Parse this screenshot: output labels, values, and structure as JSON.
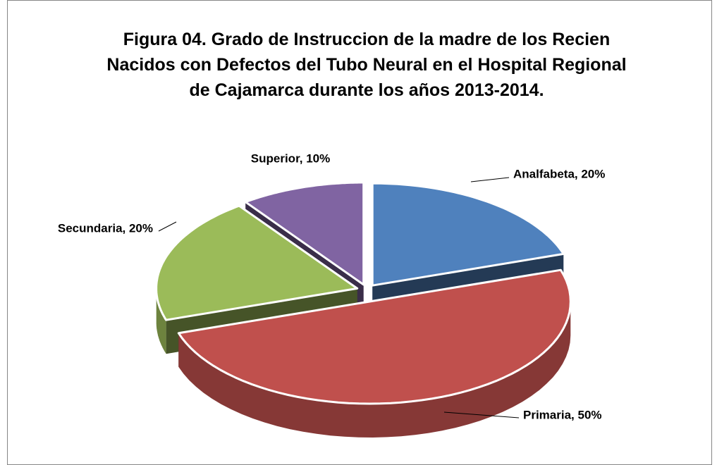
{
  "chart_data": {
    "type": "pie3d",
    "title": "Figura 04. Grado de Instruccion de la madre de los Recien Nacidos con Defectos del Tubo Neural en el Hospital Regional de Cajamarca durante los años 2013-2014.",
    "categories": [
      "Analfabeta",
      "Primaria",
      "Secundaria",
      "Superior"
    ],
    "values": [
      20,
      50,
      20,
      10
    ],
    "value_labels": [
      "Analfabeta, 20%",
      "Primaria, 50%",
      "Secundaria, 20%",
      "Superior, 10%"
    ],
    "colors": [
      "#4f81bd",
      "#c0504d",
      "#9bbb59",
      "#8064a2"
    ]
  }
}
